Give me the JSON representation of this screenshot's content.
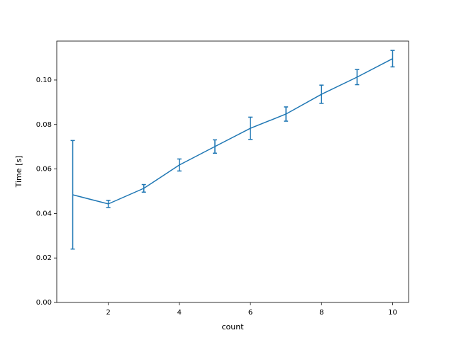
{
  "chart_data": {
    "type": "line",
    "x_label": "count",
    "y_label": "Time [s]",
    "x": [
      1,
      2,
      3,
      4,
      5,
      6,
      7,
      8,
      9,
      10
    ],
    "series": [
      {
        "color": "#1f77b4",
        "values": [
          0.0484,
          0.0443,
          0.0513,
          0.0618,
          0.0701,
          0.0783,
          0.0847,
          0.0936,
          0.1013,
          0.1096
        ],
        "errors": [
          0.0244,
          0.0016,
          0.0017,
          0.0027,
          0.003,
          0.005,
          0.0032,
          0.0041,
          0.0034,
          0.0037
        ]
      }
    ],
    "xlim": [
      0.55,
      10.45
    ],
    "ylim": [
      0,
      0.1175
    ],
    "xticks": [
      2,
      4,
      6,
      8,
      10
    ],
    "yticks": [
      {
        "value": 0,
        "label": "0.00"
      },
      {
        "value": 0.02,
        "label": "0.02"
      },
      {
        "value": 0.04,
        "label": "0.04"
      },
      {
        "value": 0.06,
        "label": "0.06"
      },
      {
        "value": 0.08,
        "label": "0.08"
      },
      {
        "value": 0.1,
        "label": "0.10"
      }
    ],
    "grid": false
  }
}
